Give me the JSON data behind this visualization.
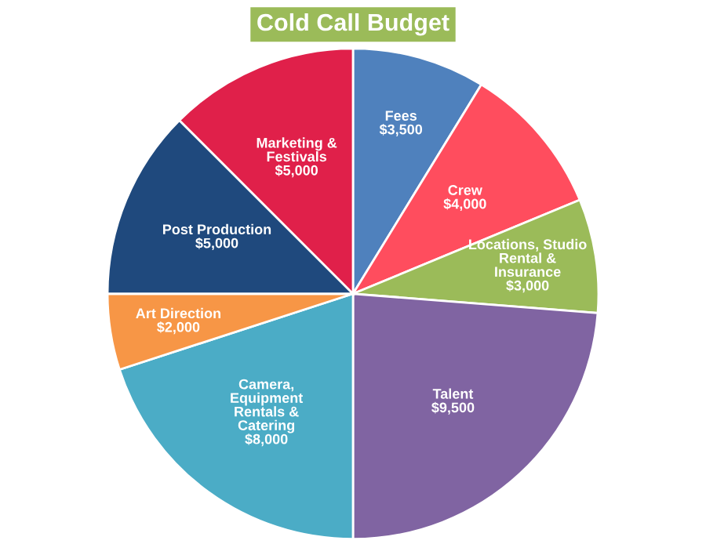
{
  "chart_data": {
    "type": "pie",
    "title": "Cold Call Budget",
    "categories": [
      "Fees",
      "Crew",
      "Locations, Studio\nRental &\nInsurance",
      "Talent",
      "Camera,\nEquipment\nRentals &\nCatering",
      "Art Direction",
      "Post Production",
      "Marketing &\nFestivals"
    ],
    "values": [
      3500,
      4000,
      3000,
      9500,
      8000,
      2000,
      5000,
      5000
    ],
    "value_labels": [
      "$3,500",
      "$4,000",
      "$3,000",
      "$9,500",
      "$8,000",
      "$2,000",
      "$5,000",
      "$5,000"
    ],
    "colors": [
      "#4f81bd",
      "#ff4d5e",
      "#9bbb59",
      "#8064a2",
      "#4bacc6",
      "#f79646",
      "#1f497d",
      "#e0204a"
    ],
    "legend": false
  }
}
